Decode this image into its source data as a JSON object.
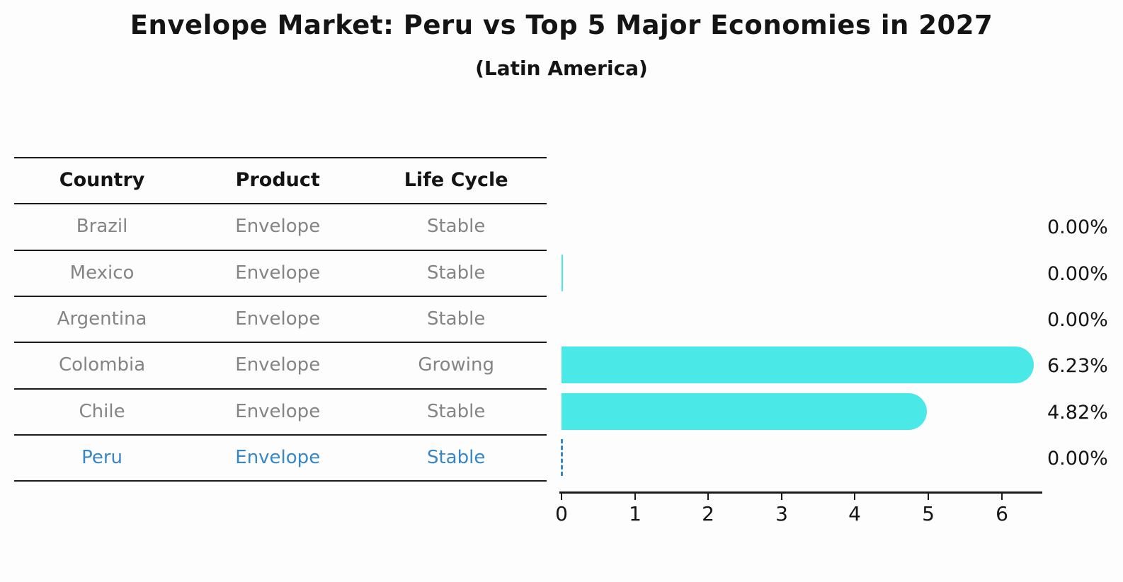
{
  "title": "Envelope Market: Peru vs Top 5 Major Economies in 2027",
  "subtitle": "(Latin America)",
  "table": {
    "headers": {
      "country": "Country",
      "product": "Product",
      "life_cycle": "Life Cycle"
    },
    "rows": [
      {
        "country": "Brazil",
        "product": "Envelope",
        "life_cycle": "Stable",
        "highlighted": false
      },
      {
        "country": "Mexico",
        "product": "Envelope",
        "life_cycle": "Stable",
        "highlighted": false
      },
      {
        "country": "Argentina",
        "product": "Envelope",
        "life_cycle": "Stable",
        "highlighted": false
      },
      {
        "country": "Colombia",
        "product": "Envelope",
        "life_cycle": "Growing",
        "highlighted": false
      },
      {
        "country": "Chile",
        "product": "Envelope",
        "life_cycle": "Stable",
        "highlighted": false
      },
      {
        "country": "Peru",
        "product": "Envelope",
        "life_cycle": "Stable",
        "highlighted": true
      }
    ]
  },
  "chart_data": {
    "type": "bar",
    "orientation": "horizontal",
    "title": "Envelope Market: Peru vs Top 5 Major Economies in 2027",
    "subtitle": "(Latin America)",
    "categories": [
      "Brazil",
      "Mexico",
      "Argentina",
      "Colombia",
      "Chile",
      "Peru"
    ],
    "values": [
      0.0,
      0.0,
      0.0,
      6.23,
      4.82,
      0.0
    ],
    "value_labels": [
      "0.00%",
      "0.00%",
      "0.00%",
      "6.23%",
      "4.82%",
      "0.00%"
    ],
    "bar_render": [
      "none",
      "hairline",
      "none",
      "solid",
      "solid",
      "dashed-outline"
    ],
    "x_ticks": [
      "0",
      "1",
      "2",
      "3",
      "4",
      "5",
      "6"
    ],
    "xlim": [
      0,
      6.5
    ],
    "grid": false,
    "legend": "none",
    "highlight_index": 5
  },
  "colors": {
    "bar": "#4ae8e6",
    "highlight": "#3787c8",
    "muted_text": "#848484",
    "text": "#141414",
    "background": "#fdfdfe"
  }
}
